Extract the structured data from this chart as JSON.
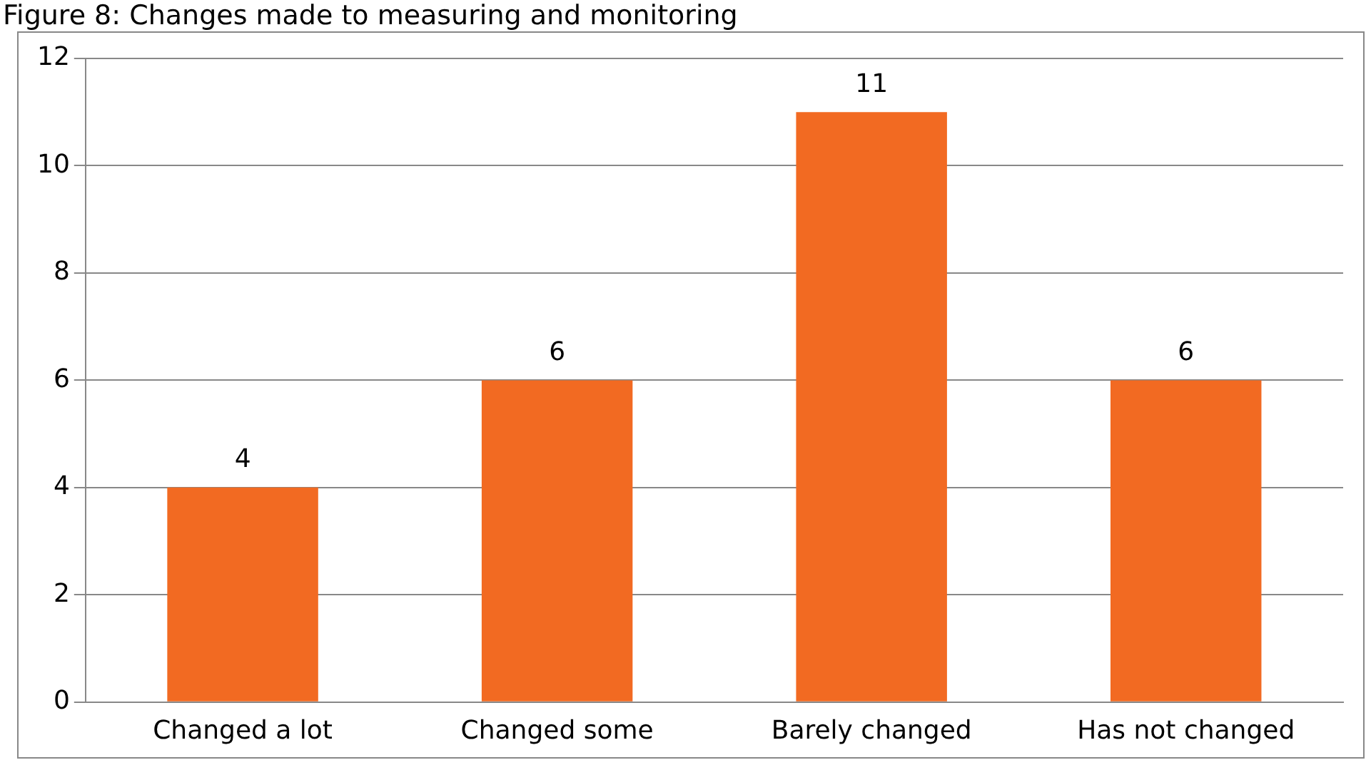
{
  "chart_data": {
    "type": "bar",
    "title": "Figure 8: Changes made to measuring and monitoring",
    "categories": [
      "Changed a lot",
      "Changed some",
      "Barely changed",
      "Has not changed"
    ],
    "values": [
      4,
      6,
      11,
      6
    ],
    "color": "#f26a22",
    "ylim": [
      0,
      12
    ],
    "yticks": [
      0,
      2,
      4,
      6,
      8,
      10,
      12
    ],
    "grid": "y",
    "data_labels": true,
    "legend": false
  }
}
